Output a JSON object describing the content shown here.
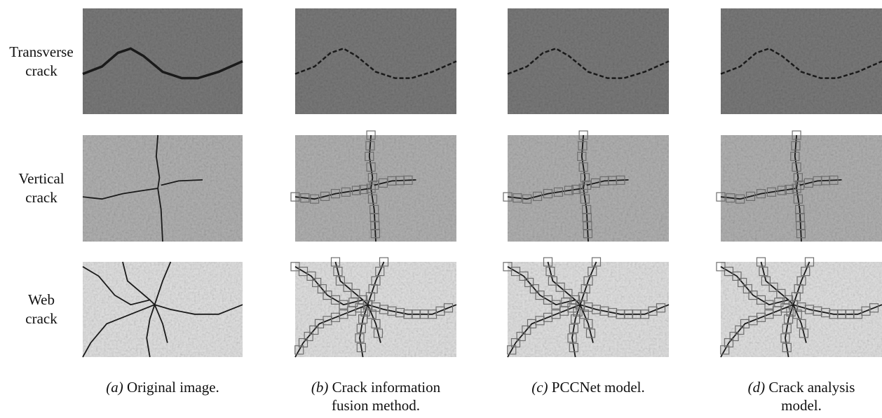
{
  "figure": {
    "rows": [
      {
        "label": [
          "Transverse",
          "crack"
        ]
      },
      {
        "label": [
          "Vertical",
          "crack"
        ]
      },
      {
        "label": [
          "Web",
          "crack"
        ]
      }
    ],
    "columns": [
      {
        "tag": "(a)",
        "caption": [
          "Original image."
        ]
      },
      {
        "tag": "(b)",
        "caption": [
          "Crack information",
          "fusion method."
        ]
      },
      {
        "tag": "(c)",
        "caption": [
          "PCCNet model."
        ]
      },
      {
        "tag": "(d)",
        "caption": [
          "Crack analysis",
          "model."
        ]
      }
    ]
  }
}
